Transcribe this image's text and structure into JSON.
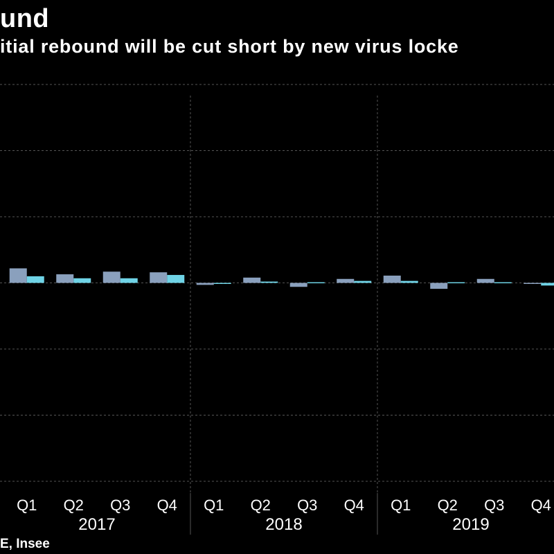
{
  "header": {
    "title": "und",
    "subtitle": "itial rebound will be cut short by new virus locke",
    "source": "E, Insee"
  },
  "colors": {
    "background": "#000000",
    "series_a": "#8aa0bd",
    "series_b": "#6fd3e6",
    "grid": "#555555"
  },
  "chart_data": {
    "type": "bar",
    "categories": [
      "Q1",
      "Q2",
      "Q3",
      "Q4",
      "Q1",
      "Q2",
      "Q3",
      "Q4",
      "Q1",
      "Q2",
      "Q3",
      "Q4"
    ],
    "category_years": [
      "2017",
      "2017",
      "2017",
      "2017",
      "2018",
      "2018",
      "2018",
      "2018",
      "2019",
      "2019",
      "2019",
      "2019"
    ],
    "year_groups": [
      "2017",
      "2018",
      "2019"
    ],
    "series": [
      {
        "values": [
          1.1,
          0.65,
          0.85,
          0.8,
          -0.15,
          0.4,
          -0.3,
          0.3,
          0.55,
          -0.45,
          0.3,
          -0.05
        ]
      },
      {
        "values": [
          0.5,
          0.35,
          0.35,
          0.6,
          -0.05,
          0.1,
          0.05,
          0.15,
          0.15,
          0.05,
          0.05,
          -0.2
        ]
      }
    ],
    "ylim": [
      -15,
      15
    ],
    "y_gridlines": [
      -15,
      -10,
      -5,
      0,
      5,
      10,
      15
    ],
    "grid": true,
    "legend": "none"
  }
}
